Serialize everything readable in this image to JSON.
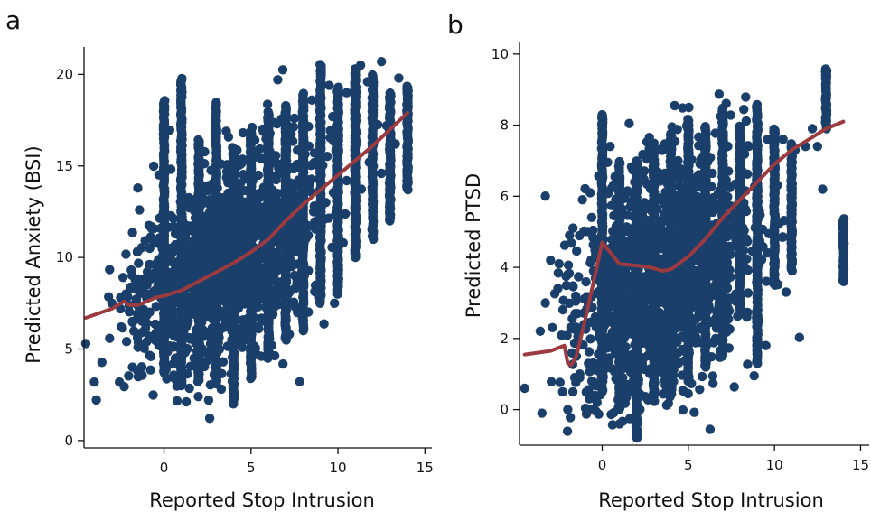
{
  "colors": {
    "points": "#1b3f6b",
    "trend": "#9b3a3f",
    "axis": "#111111"
  },
  "chart_data": [
    {
      "type": "scatter",
      "panel_label": "a",
      "xlabel": "Reported Stop Intrusion",
      "ylabel": "Predicted Anxiety (BSI)",
      "xlim": [
        -4.6,
        15.4
      ],
      "ylim": [
        -0.4,
        21.4
      ],
      "xticks": [
        0,
        5,
        10,
        15
      ],
      "yticks": [
        0,
        5,
        10,
        15,
        20
      ],
      "grid": false,
      "legend": "none",
      "columns": [
        {
          "x": 0,
          "ymin": 3.7,
          "ymax": 18.6
        },
        {
          "x": 1,
          "ymin": 3.0,
          "ymax": 19.8
        },
        {
          "x": 2,
          "ymin": 3.3,
          "ymax": 16.5
        },
        {
          "x": 3,
          "ymin": 3.1,
          "ymax": 18.5
        },
        {
          "x": 4,
          "ymin": 2.0,
          "ymax": 16.0
        },
        {
          "x": 5,
          "ymin": 3.4,
          "ymax": 17.0
        },
        {
          "x": 6,
          "ymin": 4.5,
          "ymax": 18.0
        },
        {
          "x": 7,
          "ymin": 5.5,
          "ymax": 18.3
        },
        {
          "x": 8,
          "ymin": 6.0,
          "ymax": 19.0
        },
        {
          "x": 9,
          "ymin": 7.5,
          "ymax": 20.6
        },
        {
          "x": 10,
          "ymin": 8.0,
          "ymax": 19.3
        },
        {
          "x": 11,
          "ymin": 10.0,
          "ymax": 20.3
        },
        {
          "x": 12,
          "ymin": 11.0,
          "ymax": 20.0
        },
        {
          "x": 13,
          "ymin": 12.0,
          "ymax": 19.0
        },
        {
          "x": 14,
          "ymin": 13.7,
          "ymax": 19.4
        }
      ],
      "cluster": {
        "x_center": 3.5,
        "x_spread": 2.5,
        "y_center": 9.8,
        "y_spread": 2.6,
        "count": 1400
      },
      "scatter_points": [
        [
          -4.5,
          5.3
        ],
        [
          -3.0,
          7.5
        ],
        [
          -2.5,
          7.8
        ],
        [
          -2.2,
          8.0
        ],
        [
          -1.8,
          8.3
        ],
        [
          -1.6,
          7.6
        ],
        [
          -1.5,
          8.5
        ],
        [
          -1.2,
          8.1
        ],
        [
          -1.0,
          8.6
        ],
        [
          -0.8,
          7.9
        ],
        [
          -0.5,
          8.2
        ],
        [
          -0.3,
          8.8
        ],
        [
          -0.5,
          9.2
        ],
        [
          -1.5,
          5.1
        ],
        [
          -1.0,
          5.4
        ],
        [
          -0.7,
          5.6
        ],
        [
          -0.3,
          5.2
        ],
        [
          -2.5,
          7.2
        ],
        [
          -2.0,
          7.4
        ],
        [
          -1.2,
          7.0
        ],
        [
          2.2,
          5.0
        ],
        [
          2.6,
          4.6
        ],
        [
          3.4,
          4.3
        ],
        [
          5.6,
          4.6
        ],
        [
          6.2,
          5.2
        ],
        [
          7.2,
          5.8
        ],
        [
          9.8,
          7.5
        ],
        [
          6.5,
          17.3
        ],
        [
          7.5,
          17.6
        ],
        [
          8.5,
          18.6
        ],
        [
          9.5,
          19.4
        ],
        [
          10.5,
          19.0
        ],
        [
          11.3,
          20.5
        ],
        [
          11.7,
          19.6
        ],
        [
          12.5,
          20.7
        ],
        [
          13.5,
          19.8
        ],
        [
          12.8,
          17.2
        ],
        [
          12.5,
          14.6
        ],
        [
          13.3,
          16.2
        ],
        [
          11.0,
          13.4
        ],
        [
          11.8,
          15.2
        ],
        [
          10.5,
          14.2
        ],
        [
          9.3,
          13.0
        ],
        [
          8.6,
          12.5
        ],
        [
          10.3,
          10.8
        ]
      ],
      "trend": {
        "x": [
          -4.5,
          -3.0,
          -2.3,
          -2.0,
          -1.5,
          -1.0,
          -0.5,
          0.0,
          1.0,
          2.0,
          3.0,
          4.0,
          5.0,
          6.0,
          7.0,
          8.0,
          9.0,
          10.0,
          11.0,
          12.0,
          13.0,
          14.0
        ],
        "y": [
          6.7,
          7.2,
          7.6,
          7.4,
          7.4,
          7.6,
          7.8,
          7.9,
          8.2,
          8.7,
          9.2,
          9.7,
          10.3,
          11.0,
          12.0,
          12.9,
          13.7,
          14.5,
          15.3,
          16.1,
          17.0,
          17.9
        ]
      }
    },
    {
      "type": "scatter",
      "panel_label": "b",
      "xlabel": "Reported Stop Intrusion",
      "ylabel": "Predicted PTSD",
      "xlim": [
        -4.8,
        15.5
      ],
      "ylim": [
        -1.0,
        10.3
      ],
      "xticks": [
        0,
        5,
        10,
        15
      ],
      "yticks": [
        0,
        2,
        4,
        6,
        8,
        10
      ],
      "grid": false,
      "legend": "none",
      "columns": [
        {
          "x": 0,
          "ymin": 0.5,
          "ymax": 8.3
        },
        {
          "x": 1,
          "ymin": 0.0,
          "ymax": 7.0
        },
        {
          "x": 2,
          "ymin": -0.8,
          "ymax": 7.0
        },
        {
          "x": 3,
          "ymin": 0.3,
          "ymax": 7.5
        },
        {
          "x": 4,
          "ymin": 0.4,
          "ymax": 7.8
        },
        {
          "x": 5,
          "ymin": 0.8,
          "ymax": 8.2
        },
        {
          "x": 6,
          "ymin": 1.2,
          "ymax": 8.0
        },
        {
          "x": 7,
          "ymin": 1.5,
          "ymax": 8.5
        },
        {
          "x": 8,
          "ymin": 2.8,
          "ymax": 8.0
        },
        {
          "x": 9,
          "ymin": 1.3,
          "ymax": 8.6
        },
        {
          "x": 10,
          "ymin": 3.5,
          "ymax": 7.9
        },
        {
          "x": 11,
          "ymin": 3.9,
          "ymax": 7.5
        },
        {
          "x": 13,
          "ymin": 7.9,
          "ymax": 9.6
        },
        {
          "x": 14,
          "ymin": 3.6,
          "ymax": 5.4
        }
      ],
      "cluster": {
        "x_center": 3.5,
        "x_spread": 2.5,
        "y_center": 3.7,
        "y_spread": 1.6,
        "count": 1400
      },
      "scatter_points": [
        [
          -4.5,
          0.6
        ],
        [
          -3.5,
          -0.1
        ],
        [
          -3.0,
          4.2
        ],
        [
          -3.3,
          3.0
        ],
        [
          -2.5,
          4.1
        ],
        [
          -2.0,
          3.8
        ],
        [
          -2.0,
          0.0
        ],
        [
          -1.7,
          0.5
        ],
        [
          -1.6,
          0.9
        ],
        [
          -1.3,
          1.0
        ],
        [
          -0.8,
          1.3
        ],
        [
          -0.6,
          0.8
        ],
        [
          -0.3,
          0.2
        ],
        [
          -0.7,
          6.1
        ],
        [
          -2.3,
          0.5
        ],
        [
          -1.5,
          1.5
        ],
        [
          -0.3,
          1.1
        ],
        [
          1.0,
          -0.4
        ],
        [
          7.0,
          7.7
        ],
        [
          8.5,
          7.4
        ],
        [
          9.6,
          7.6
        ],
        [
          10.5,
          7.6
        ],
        [
          11.2,
          7.3
        ],
        [
          11.8,
          7.4
        ],
        [
          12.2,
          7.9
        ],
        [
          12.5,
          7.4
        ],
        [
          12.8,
          6.2
        ],
        [
          9.5,
          1.8
        ],
        [
          8.4,
          2.6
        ],
        [
          6.5,
          2.5
        ]
      ],
      "trend": {
        "x": [
          -4.5,
          -3.0,
          -2.2,
          -2.0,
          -1.8,
          -1.5,
          -1.0,
          -0.5,
          0.0,
          0.5,
          1.0,
          2.0,
          2.8,
          3.5,
          4.0,
          5.0,
          6.0,
          7.0,
          8.0,
          9.0,
          10.0,
          11.0,
          12.0,
          13.0,
          14.0
        ],
        "y": [
          1.55,
          1.65,
          1.8,
          1.3,
          1.25,
          1.5,
          2.5,
          3.6,
          4.7,
          4.4,
          4.1,
          4.05,
          4.0,
          3.9,
          3.95,
          4.3,
          4.8,
          5.4,
          5.9,
          6.4,
          6.9,
          7.3,
          7.6,
          7.9,
          8.1
        ]
      }
    }
  ]
}
